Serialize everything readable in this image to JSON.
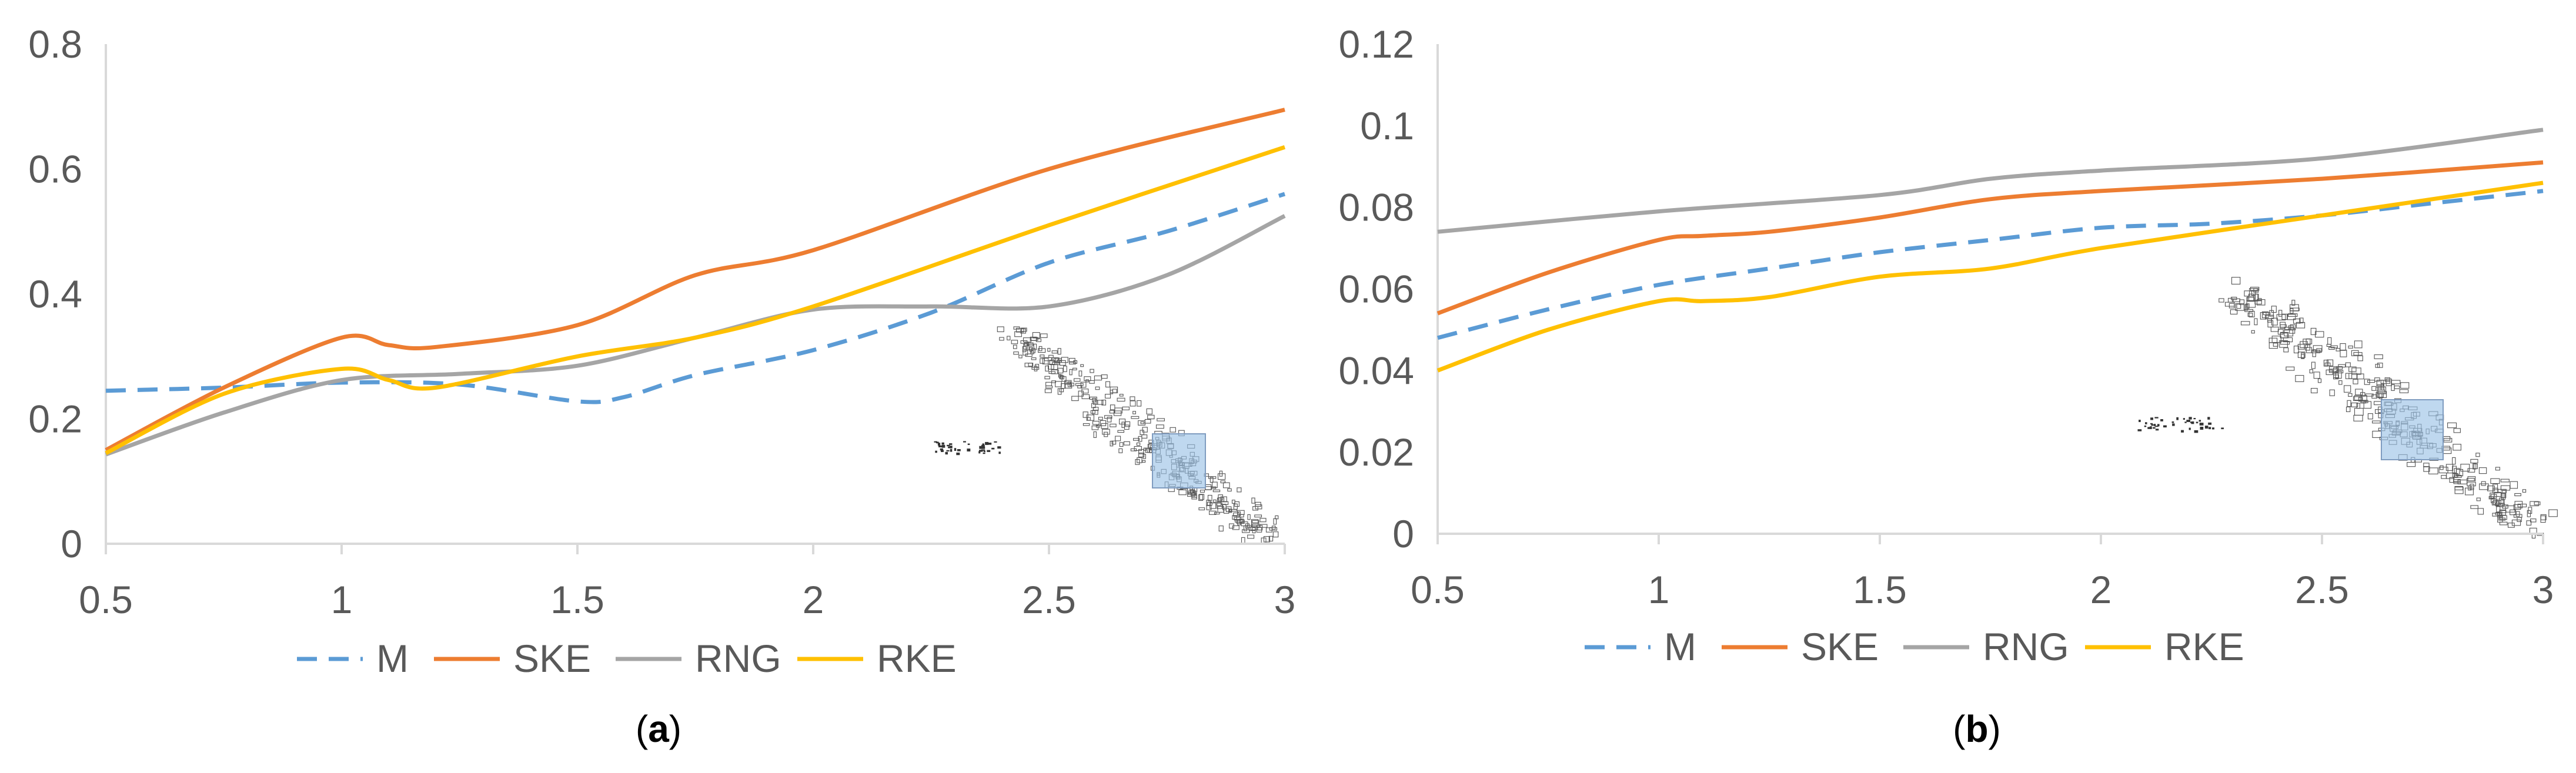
{
  "colors": {
    "M": "#5b9bd5",
    "SKE": "#ed7d31",
    "RNG": "#a5a5a5",
    "RKE": "#ffc000",
    "axis": "#d9d9d9",
    "text": "#595959",
    "map_overlay": "#9dc3e6"
  },
  "chart_data": [
    {
      "type": "line",
      "panel_label": "a",
      "caption_open": "(",
      "caption_close": ")",
      "x_ticks": [
        "0.5",
        "1",
        "1.5",
        "2",
        "2.5",
        "3"
      ],
      "y_ticks": [
        "0",
        "0.2",
        "0.4",
        "0.6",
        "0.8"
      ],
      "xlim": [
        0.5,
        3
      ],
      "ylim": [
        0,
        0.8
      ],
      "grid": false,
      "legend_position": "bottom",
      "inset": "building-footprint-map-icon",
      "series": [
        {
          "name": "M",
          "style": "dashed",
          "x": [
            0.5,
            0.75,
            1.0,
            1.25,
            1.5,
            1.6,
            1.75,
            2.0,
            2.25,
            2.5,
            2.75,
            3.0
          ],
          "y": [
            0.245,
            0.25,
            0.258,
            0.255,
            0.228,
            0.235,
            0.27,
            0.31,
            0.37,
            0.45,
            0.5,
            0.56
          ]
        },
        {
          "name": "SKE",
          "style": "solid",
          "x": [
            0.5,
            0.75,
            1.0,
            1.1,
            1.2,
            1.5,
            1.75,
            2.0,
            2.5,
            3.0
          ],
          "y": [
            0.15,
            0.25,
            0.33,
            0.318,
            0.315,
            0.35,
            0.43,
            0.47,
            0.6,
            0.695
          ]
        },
        {
          "name": "RNG",
          "style": "solid",
          "x": [
            0.5,
            0.75,
            1.0,
            1.25,
            1.5,
            1.75,
            2.0,
            2.25,
            2.5,
            2.75,
            3.0
          ],
          "y": [
            0.143,
            0.21,
            0.262,
            0.272,
            0.285,
            0.33,
            0.375,
            0.38,
            0.38,
            0.43,
            0.525
          ]
        },
        {
          "name": "RKE",
          "style": "solid",
          "x": [
            0.5,
            0.75,
            1.0,
            1.1,
            1.2,
            1.5,
            1.75,
            2.0,
            2.5,
            3.0
          ],
          "y": [
            0.145,
            0.24,
            0.28,
            0.262,
            0.25,
            0.3,
            0.33,
            0.38,
            0.51,
            0.635
          ]
        }
      ]
    },
    {
      "type": "line",
      "panel_label": "b",
      "caption_open": "(",
      "caption_close": ")",
      "x_ticks": [
        "0.5",
        "1",
        "1.5",
        "2",
        "2.5",
        "3"
      ],
      "y_ticks": [
        "0",
        "0.02",
        "0.04",
        "0.06",
        "0.08",
        "0.1",
        "0.12"
      ],
      "xlim": [
        0.5,
        3
      ],
      "ylim": [
        0,
        0.12
      ],
      "grid": false,
      "legend_position": "bottom",
      "inset": "building-footprint-map-icon",
      "series": [
        {
          "name": "M",
          "style": "dashed",
          "x": [
            0.5,
            0.75,
            1.0,
            1.25,
            1.5,
            1.75,
            2.0,
            2.25,
            2.5,
            2.75,
            3.0
          ],
          "y": [
            0.048,
            0.055,
            0.061,
            0.065,
            0.069,
            0.072,
            0.075,
            0.076,
            0.078,
            0.081,
            0.084
          ]
        },
        {
          "name": "SKE",
          "style": "solid",
          "x": [
            0.5,
            0.75,
            1.0,
            1.1,
            1.25,
            1.5,
            1.75,
            2.0,
            2.5,
            3.0
          ],
          "y": [
            0.054,
            0.064,
            0.072,
            0.073,
            0.074,
            0.0775,
            0.082,
            0.084,
            0.087,
            0.091
          ]
        },
        {
          "name": "RNG",
          "style": "solid",
          "x": [
            0.5,
            1.0,
            1.5,
            1.75,
            2.0,
            2.5,
            3.0
          ],
          "y": [
            0.074,
            0.079,
            0.083,
            0.087,
            0.089,
            0.092,
            0.099
          ]
        },
        {
          "name": "RKE",
          "style": "solid",
          "x": [
            0.5,
            0.75,
            1.0,
            1.1,
            1.25,
            1.5,
            1.75,
            2.0,
            2.5,
            3.0
          ],
          "y": [
            0.04,
            0.05,
            0.057,
            0.057,
            0.058,
            0.063,
            0.065,
            0.07,
            0.078,
            0.086
          ]
        }
      ]
    }
  ]
}
